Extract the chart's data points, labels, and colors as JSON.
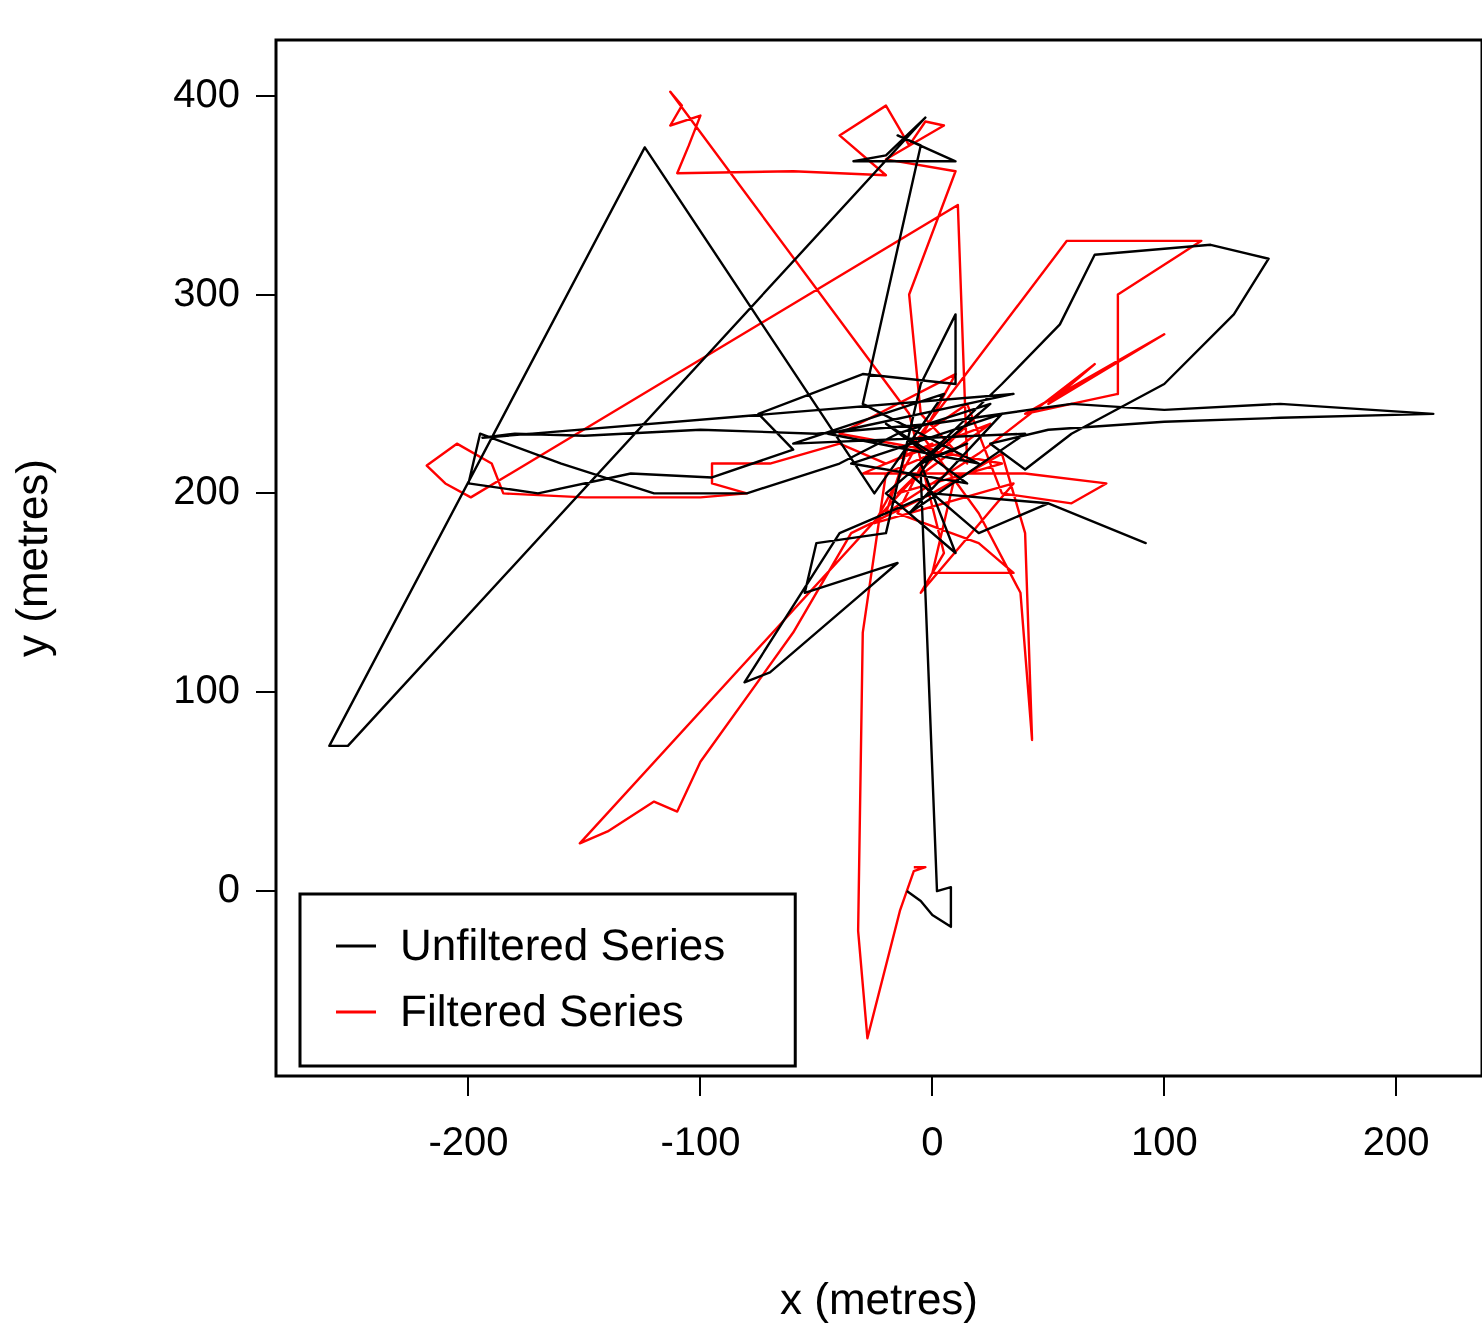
{
  "chart_data": {
    "type": "line",
    "xlabel": "x (metres)",
    "ylabel": "y (metres)",
    "xlim": [
      -283,
      237
    ],
    "ylim": [
      -93,
      428
    ],
    "xticks": [
      -200,
      -100,
      0,
      100,
      200
    ],
    "yticks": [
      0,
      100,
      200,
      300,
      400
    ],
    "grid": false,
    "legend": "bottom left",
    "marker": "none",
    "line_style": "solid",
    "series": [
      {
        "name": "Unfiltered Series",
        "color": "#000000",
        "x": [
          -11,
          -5,
          0,
          8,
          8,
          2,
          -5,
          0,
          -20,
          15,
          -35,
          30,
          -10,
          40,
          -60,
          5,
          -25,
          -124,
          -260,
          -252,
          -3,
          -20,
          -34,
          10,
          -15,
          -5,
          -30,
          20,
          -45,
          35,
          -194,
          -180,
          -150,
          -100,
          -50,
          0,
          60,
          100,
          150,
          216,
          150,
          100,
          50,
          25,
          40,
          60,
          100,
          130,
          145,
          120,
          70,
          55,
          30,
          -10,
          20,
          50,
          92,
          50,
          0,
          -40,
          -81,
          -70,
          -30,
          -15,
          -55,
          -50,
          -20,
          -5,
          10,
          10,
          -30,
          -75,
          -60,
          -95,
          -130,
          -170,
          -200,
          -195,
          -160,
          -120,
          -80,
          -40,
          -15,
          25,
          -20,
          10,
          -5,
          15,
          0
        ],
        "values": [
          0,
          -5,
          -12,
          -18,
          2,
          0,
          210,
          220,
          235,
          205,
          215,
          240,
          190,
          230,
          225,
          250,
          200,
          374,
          73,
          73,
          389,
          370,
          367,
          367,
          380,
          375,
          245,
          215,
          230,
          250,
          228,
          230,
          229,
          232,
          230,
          235,
          245,
          242,
          245,
          240,
          238,
          236,
          232,
          225,
          212,
          230,
          255,
          290,
          318,
          325,
          320,
          285,
          255,
          210,
          180,
          195,
          175,
          195,
          200,
          180,
          105,
          110,
          150,
          165,
          150,
          175,
          180,
          255,
          290,
          255,
          260,
          240,
          222,
          208,
          210,
          200,
          205,
          230,
          215,
          200,
          200,
          215,
          230,
          245,
          200,
          170,
          215,
          225,
          218
        ]
      },
      {
        "name": "Filtered Series",
        "color": "#ff0000",
        "x": [
          -8,
          -3,
          -8,
          -14,
          -28,
          -32,
          -30,
          -20,
          0,
          20,
          -15,
          30,
          -40,
          10,
          -25,
          35,
          -5,
          5,
          -10,
          -113,
          -108,
          -113,
          -100,
          -105,
          -110,
          -60,
          -20,
          -40,
          -20,
          -10,
          -3,
          5,
          -20,
          10,
          -10,
          -5,
          15,
          11,
          -199,
          -210,
          -218,
          -205,
          -190,
          -185,
          -150,
          -100,
          -80,
          -95,
          -95,
          -70,
          -40,
          -20,
          25,
          -10,
          -152,
          -140,
          -120,
          -110,
          -100,
          -60,
          -35,
          0,
          30,
          40,
          43,
          38,
          20,
          -5,
          58,
          116,
          80,
          80,
          40,
          100,
          50,
          70,
          20,
          -20,
          -10,
          15,
          30,
          60,
          75,
          40,
          -30,
          0,
          -15,
          20,
          35,
          0,
          10
        ],
        "values": [
          12,
          12,
          10,
          -10,
          -74,
          -20,
          130,
          210,
          220,
          240,
          200,
          215,
          230,
          260,
          185,
          205,
          150,
          170,
          240,
          402,
          395,
          385,
          390,
          375,
          361,
          362,
          360,
          380,
          395,
          375,
          387,
          385,
          368,
          362,
          300,
          240,
          215,
          345,
          198,
          205,
          214,
          225,
          215,
          200,
          198,
          198,
          200,
          205,
          215,
          215,
          225,
          215,
          235,
          205,
          24,
          30,
          45,
          40,
          65,
          130,
          180,
          200,
          220,
          180,
          76,
          150,
          190,
          230,
          327,
          327,
          300,
          250,
          240,
          280,
          245,
          265,
          220,
          190,
          225,
          245,
          200,
          195,
          205,
          210,
          210,
          225,
          190,
          175,
          160,
          160,
          210
        ]
      }
    ]
  }
}
